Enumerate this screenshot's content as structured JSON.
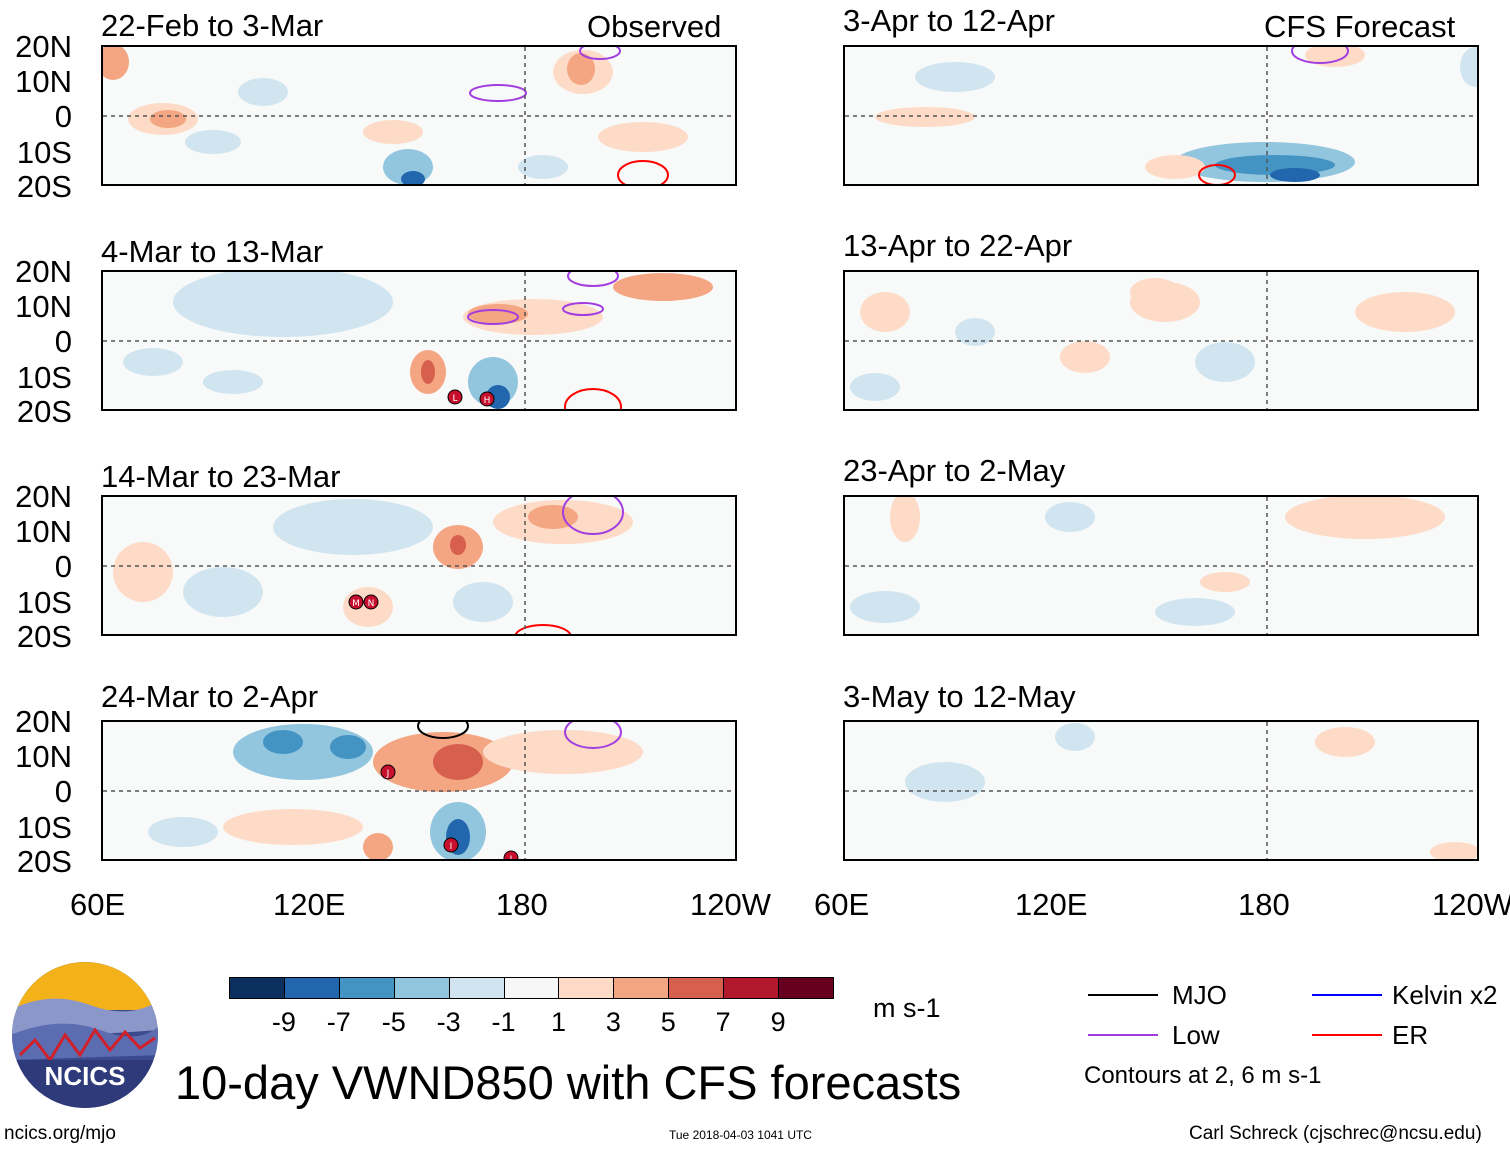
{
  "chart_data": {
    "type": "heatmap",
    "title": "10-day VWND850 with CFS forecasts",
    "variable": "VWND850",
    "units": "m s-1",
    "x_range": [
      "60E",
      "120W"
    ],
    "y_range": [
      "20S",
      "20N"
    ],
    "x_ticks": [
      "60E",
      "120E",
      "180",
      "120W"
    ],
    "y_ticks": [
      "20N",
      "10N",
      "0",
      "10S",
      "20S"
    ],
    "columns": [
      {
        "label": "Observed",
        "panels": [
          {
            "title": "22-Feb to 3-Mar",
            "markers": []
          },
          {
            "title": "4-Mar to 13-Mar",
            "markers": [
              "L",
              "H"
            ]
          },
          {
            "title": "14-Mar to 23-Mar",
            "markers": [
              "M",
              "N"
            ]
          },
          {
            "title": "24-Mar to 2-Apr",
            "markers": [
              "J",
              "I",
              "J"
            ]
          }
        ]
      },
      {
        "label": "CFS Forecast",
        "panels": [
          {
            "title": "3-Apr to 12-Apr",
            "markers": []
          },
          {
            "title": "13-Apr to 22-Apr",
            "markers": []
          },
          {
            "title": "23-Apr to 2-May",
            "markers": []
          },
          {
            "title": "3-May to 12-May",
            "markers": []
          }
        ]
      }
    ],
    "colorbar": {
      "labels": [
        "-9",
        "-7",
        "-5",
        "-3",
        "-1",
        "1",
        "3",
        "5",
        "7",
        "9"
      ],
      "colors": [
        "#0b2f5e",
        "#2266ad",
        "#4393c3",
        "#92c5de",
        "#d1e5f0",
        "#f7f7f7",
        "#fddbc7",
        "#f4a582",
        "#d6604d",
        "#b2182b",
        "#67001f"
      ],
      "units": "m s-1"
    },
    "legend": [
      {
        "label": "MJO",
        "color": "#000000"
      },
      {
        "label": "Kelvin x2",
        "color": "#0000ff"
      },
      {
        "label": "Low",
        "color": "#a23ee0"
      },
      {
        "label": "ER",
        "color": "#ff0000"
      }
    ],
    "contour_note": "Contours at 2, 6 m s-1"
  },
  "footer": {
    "logo_text": "NCICS",
    "url": "ncics.org/mjo",
    "timestamp": "Tue 2018-04-03 1041 UTC",
    "credit": "Carl Schreck (cjschrec@ncsu.edu)"
  }
}
